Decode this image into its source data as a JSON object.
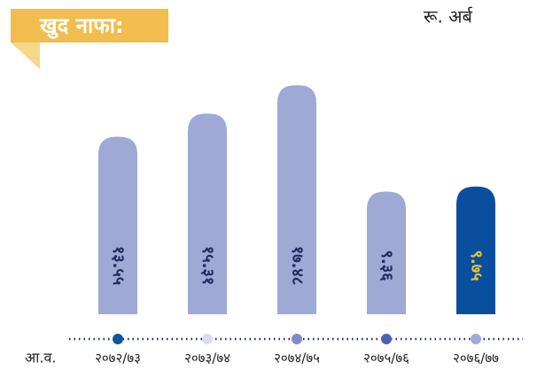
{
  "chart_data": {
    "type": "bar",
    "title": "खुद नाफा:",
    "unit": "रू. अर्ब",
    "x_label": "आ.व.",
    "categories": [
      "२०७२/७३",
      "२०७३/७४",
      "२०७४/७५",
      "२०७५/७६",
      "२०७६/७७"
    ],
    "values": [
      13.55,
      15.31,
      17.48,
      9.36,
      9.75
    ],
    "value_labels": [
      "१३.५५",
      "१५.३१",
      "१७.४८",
      "९.३६",
      "९.७५"
    ],
    "colors": [
      "#9ea9d6",
      "#9ea9d6",
      "#9ea9d6",
      "#9ea9d6",
      "#0a4f9e"
    ],
    "label_colors": [
      "#1b2a5e",
      "#1b2a5e",
      "#1b2a5e",
      "#1b2a5e",
      "#e8c040"
    ],
    "dot_colors": [
      "#0f55a8",
      "#d8dcee",
      "#7f8cc4",
      "#4a63b0",
      "#a0a9d8"
    ]
  }
}
